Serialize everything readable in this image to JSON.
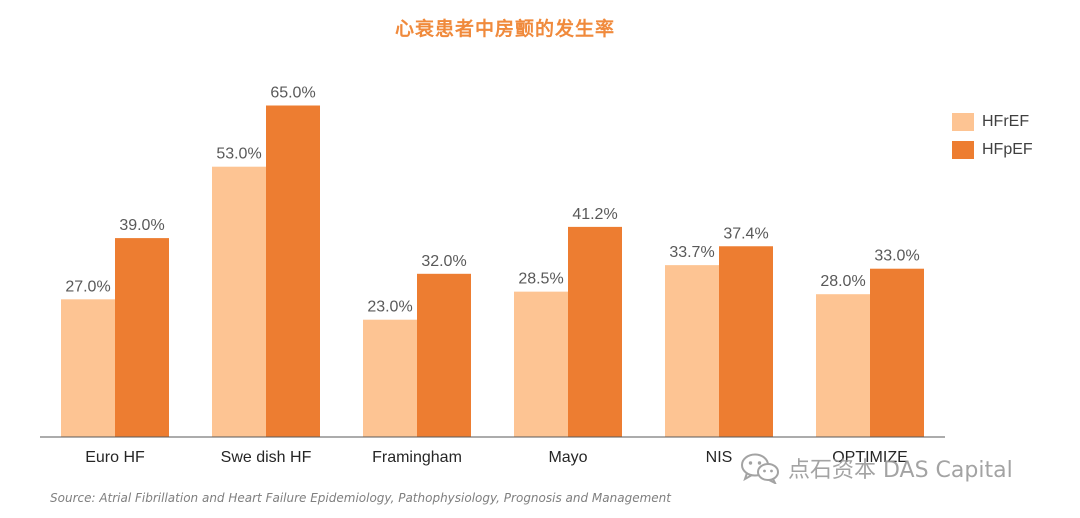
{
  "colors": {
    "title": "#F08A3C",
    "series_light": "#FDC493",
    "series_dark": "#ED7D31",
    "axis": "#595959"
  },
  "chart_data": {
    "type": "bar",
    "title": "心衰患者中房颤的发生率",
    "categories": [
      "Euro HF",
      "Swe dish HF",
      "Framingham",
      "Mayo",
      "NIS",
      "OPTIMIZE"
    ],
    "series": [
      {
        "name": "HFrEF",
        "values": [
          27.0,
          53.0,
          23.0,
          28.5,
          33.7,
          28.0
        ]
      },
      {
        "name": "HFpEF",
        "values": [
          39.0,
          65.0,
          32.0,
          41.2,
          37.4,
          33.0
        ]
      }
    ],
    "value_suffix": "%",
    "ylim": [
      0,
      80
    ],
    "grid": false,
    "legend": "right"
  },
  "watermark": {
    "text": "点石资本 DAS Capital",
    "icon": "wechat-icon"
  },
  "source": "Source:  Atrial Fibrillation and Heart Failure Epidemiology, Pathophysiology, Prognosis and Management"
}
